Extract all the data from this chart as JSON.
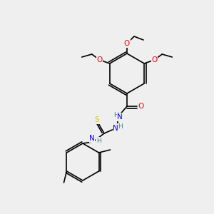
{
  "background_color": "#efefef",
  "bond_color": "#000000",
  "atom_colors": {
    "O": "#ff0000",
    "N": "#0000ff",
    "S": "#cccc00",
    "H": "#408080",
    "C": "#000000"
  },
  "font_size": 7.5,
  "bond_width": 1.2
}
